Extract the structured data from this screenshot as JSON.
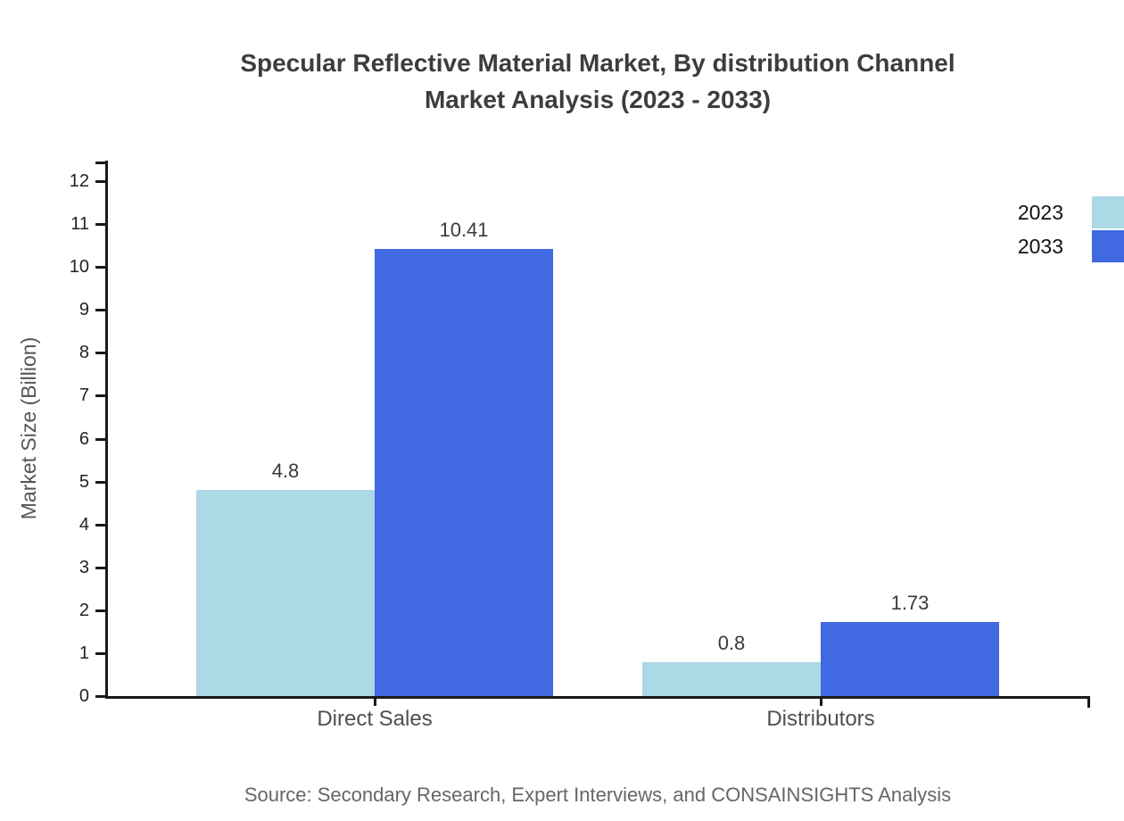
{
  "title": {
    "line1": "Specular Reflective Material Market, By distribution Channel",
    "line2": "Market Analysis (2023 - 2033)"
  },
  "source_note": "Source: Secondary Research, Expert Interviews, and CONSAINSIGHTS Analysis",
  "chart_data": {
    "type": "bar",
    "title": "Specular Reflective Material Market, By distribution Channel Market Analysis (2023 - 2033)",
    "categories": [
      "Direct Sales",
      "Distributors"
    ],
    "series": [
      {
        "name": "2023",
        "color": "#ADD8E6",
        "values": [
          4.8,
          0.8
        ]
      },
      {
        "name": "2033",
        "color": "#4169E1",
        "values": [
          10.41,
          1.73
        ]
      }
    ],
    "xlabel": "",
    "ylabel": "Market Size (Billion)",
    "ylim": [
      0,
      12.5
    ],
    "yticks": [
      0,
      1,
      2,
      3,
      4,
      5,
      6,
      7,
      8,
      9,
      10,
      11,
      12
    ],
    "grid": false,
    "value_labels": true,
    "legend_position": "top-right",
    "axis_color": "#1a1a1a",
    "title_color": "#3d3d3d",
    "label_color": "#4f4f4f"
  }
}
